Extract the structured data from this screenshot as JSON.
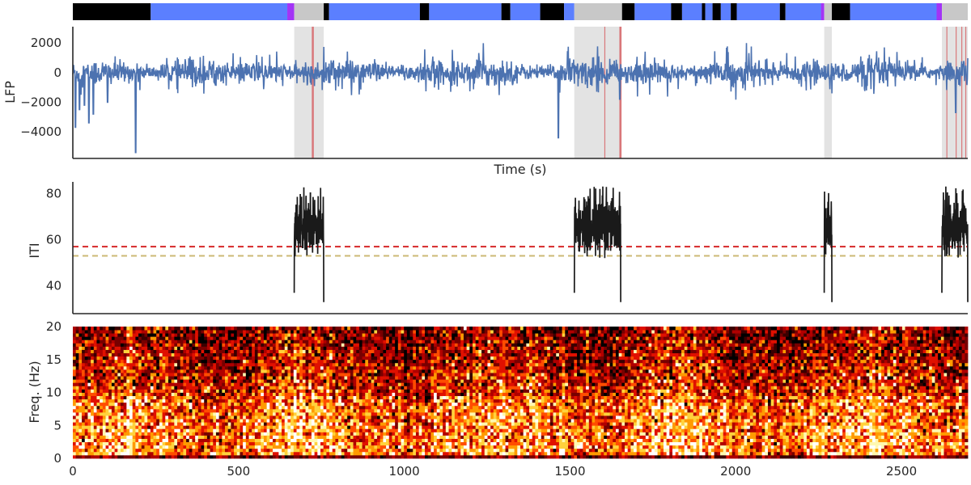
{
  "chart_data": [
    {
      "type": "heatmap",
      "name": "state-bar",
      "x_range": [
        0,
        2700
      ],
      "colors": {
        "black": "#000000",
        "blue": "#5b7fff",
        "gray": "#c8c8c8",
        "purple": "#a334f5"
      },
      "segments": [
        {
          "s": 0,
          "e": 235,
          "c": "black"
        },
        {
          "s": 235,
          "e": 647,
          "c": "blue"
        },
        {
          "s": 647,
          "e": 668,
          "c": "purple"
        },
        {
          "s": 668,
          "e": 757,
          "c": "gray"
        },
        {
          "s": 757,
          "e": 773,
          "c": "black"
        },
        {
          "s": 773,
          "e": 1047,
          "c": "blue"
        },
        {
          "s": 1047,
          "e": 1075,
          "c": "black"
        },
        {
          "s": 1075,
          "e": 1293,
          "c": "blue"
        },
        {
          "s": 1293,
          "e": 1320,
          "c": "black"
        },
        {
          "s": 1320,
          "e": 1410,
          "c": "blue"
        },
        {
          "s": 1410,
          "e": 1482,
          "c": "black"
        },
        {
          "s": 1482,
          "e": 1513,
          "c": "blue"
        },
        {
          "s": 1513,
          "e": 1657,
          "c": "gray"
        },
        {
          "s": 1657,
          "e": 1695,
          "c": "black"
        },
        {
          "s": 1695,
          "e": 1805,
          "c": "blue"
        },
        {
          "s": 1805,
          "e": 1838,
          "c": "black"
        },
        {
          "s": 1838,
          "e": 1898,
          "c": "blue"
        },
        {
          "s": 1898,
          "e": 1908,
          "c": "black"
        },
        {
          "s": 1908,
          "e": 1930,
          "c": "blue"
        },
        {
          "s": 1930,
          "e": 1955,
          "c": "black"
        },
        {
          "s": 1955,
          "e": 1985,
          "c": "blue"
        },
        {
          "s": 1985,
          "e": 2003,
          "c": "black"
        },
        {
          "s": 2003,
          "e": 2133,
          "c": "blue"
        },
        {
          "s": 2133,
          "e": 2150,
          "c": "black"
        },
        {
          "s": 2150,
          "e": 2257,
          "c": "blue"
        },
        {
          "s": 2257,
          "e": 2267,
          "c": "purple"
        },
        {
          "s": 2267,
          "e": 2290,
          "c": "gray"
        },
        {
          "s": 2290,
          "e": 2345,
          "c": "black"
        },
        {
          "s": 2345,
          "e": 2606,
          "c": "blue"
        },
        {
          "s": 2606,
          "e": 2622,
          "c": "purple"
        },
        {
          "s": 2622,
          "e": 2700,
          "c": "gray"
        }
      ]
    },
    {
      "type": "line",
      "name": "lfp",
      "xlabel": "Time (s)",
      "ylabel": "LFP",
      "xlim": [
        0,
        2700
      ],
      "ylim": [
        -5800,
        3100
      ],
      "yticks": [
        2000,
        0,
        -2000,
        -4000
      ],
      "ytick_labels": [
        "2000",
        "0",
        "−2000",
        "−4000"
      ],
      "color": "#4c72b0",
      "shaded_intervals": [
        [
          668,
          757
        ],
        [
          1513,
          1653
        ],
        [
          2267,
          2290
        ],
        [
          2622,
          2700
        ]
      ],
      "event_lines": [
        724,
        1605,
        1652,
        1654,
        2637,
        2665,
        2682,
        2694
      ],
      "spikes": [
        {
          "x": 8,
          "y": -3700
        },
        {
          "x": 20,
          "y": -2500
        },
        {
          "x": 35,
          "y": -2200
        },
        {
          "x": 48,
          "y": -3400
        },
        {
          "x": 62,
          "y": -2800
        },
        {
          "x": 105,
          "y": -2000
        },
        {
          "x": 190,
          "y": -5400
        },
        {
          "x": 1465,
          "y": -4400
        },
        {
          "x": 1650,
          "y": -1800
        },
        {
          "x": 2664,
          "y": -2700
        }
      ],
      "noise_amplitude": 900
    },
    {
      "type": "line",
      "name": "iti",
      "ylabel": "ITI",
      "xlim": [
        0,
        2700
      ],
      "ylim": [
        28,
        85
      ],
      "yticks": [
        80,
        60,
        40
      ],
      "ytick_labels": [
        "80",
        "60",
        "40"
      ],
      "color": "#1a1a1a",
      "bursts": [
        [
          668,
          757
        ],
        [
          1513,
          1653
        ],
        [
          2267,
          2290
        ],
        [
          2622,
          2700
        ]
      ],
      "hlines": [
        {
          "y": 57,
          "color": "#d62728"
        },
        {
          "y": 53,
          "color": "#ccb974"
        }
      ]
    },
    {
      "type": "heatmap",
      "name": "spectrogram",
      "ylabel": "Freq. (Hz)",
      "xlim": [
        0,
        2700
      ],
      "ylim": [
        0,
        20
      ],
      "yticks": [
        20,
        15,
        10,
        5,
        0
      ],
      "ytick_labels": [
        "20",
        "15",
        "10",
        "5",
        "0"
      ],
      "xticks": [
        0,
        500,
        1000,
        1500,
        2000,
        2500
      ],
      "xtick_labels": [
        "0",
        "500",
        "1000",
        "1500",
        "2000",
        "2500"
      ],
      "colormap": "hot"
    }
  ]
}
